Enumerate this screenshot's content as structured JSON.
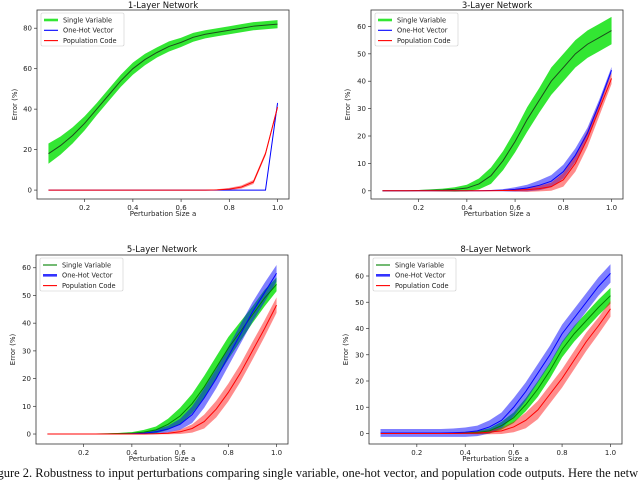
{
  "chart_data": [
    {
      "type": "line",
      "title": "1-Layer Network",
      "xlabel": "Perturbation Size a",
      "ylabel": "Error (%)",
      "xlim": [
        0.0025,
        1.0475
      ],
      "ylim": [
        -4.4,
        89
      ],
      "xticks": [
        0.2,
        0.4,
        0.6,
        0.8,
        1.0
      ],
      "yticks": [
        0,
        20,
        40,
        60,
        80
      ],
      "legend": "upper-left",
      "x": [
        0.05,
        0.1,
        0.15,
        0.2,
        0.25,
        0.3,
        0.35,
        0.4,
        0.45,
        0.5,
        0.55,
        0.6,
        0.65,
        0.7,
        0.75,
        0.8,
        0.85,
        0.9,
        0.95,
        1.0
      ],
      "series": [
        {
          "name": "Single Variable",
          "color": "#00e000",
          "line_color": "#1b4d1b",
          "values": [
            18,
            22,
            27,
            33,
            40,
            47,
            54,
            60,
            64.5,
            68,
            71,
            73,
            75.5,
            77,
            78,
            79,
            80,
            81,
            81.5,
            82
          ],
          "std": [
            5,
            4.5,
            4,
            3.5,
            3,
            3,
            3,
            3,
            2.8,
            2.5,
            2.5,
            2.3,
            2.2,
            2,
            2,
            2,
            2,
            2,
            2,
            2
          ]
        },
        {
          "name": "One-Hot Vector",
          "color": "#0000ff",
          "line_color": "#0000ff",
          "values": [
            0,
            0,
            0,
            0,
            0,
            0,
            0,
            0,
            0,
            0,
            0,
            0,
            0,
            0,
            0,
            0,
            0,
            0,
            0,
            43
          ],
          "std": [
            0,
            0,
            0,
            0,
            0,
            0,
            0,
            0,
            0,
            0,
            0,
            0,
            0,
            0,
            0,
            0,
            0,
            0,
            0,
            1
          ]
        },
        {
          "name": "Population Code",
          "color": "#ff0000",
          "line_color": "#ff0000",
          "values": [
            0,
            0,
            0,
            0,
            0,
            0,
            0,
            0,
            0,
            0,
            0,
            0,
            0,
            0,
            0.1,
            0.5,
            1.5,
            4,
            18,
            41
          ],
          "std": [
            0,
            0,
            0,
            0,
            0,
            0,
            0,
            0,
            0,
            0,
            0,
            0,
            0,
            0,
            0.3,
            0.6,
            0.8,
            1,
            1,
            1
          ]
        }
      ]
    },
    {
      "type": "line",
      "title": "3-Layer Network",
      "xlabel": "Perturbation Size a",
      "ylabel": "Error (%)",
      "xlim": [
        0.0025,
        1.0475
      ],
      "ylim": [
        -3,
        66
      ],
      "xticks": [
        0.2,
        0.4,
        0.6,
        0.8,
        1.0
      ],
      "yticks": [
        0,
        10,
        20,
        30,
        40,
        50,
        60
      ],
      "legend": "upper-left",
      "x": [
        0.05,
        0.1,
        0.15,
        0.2,
        0.25,
        0.3,
        0.35,
        0.4,
        0.45,
        0.5,
        0.55,
        0.6,
        0.65,
        0.7,
        0.75,
        0.8,
        0.85,
        0.9,
        0.95,
        1.0
      ],
      "series": [
        {
          "name": "Single Variable",
          "color": "#00e000",
          "line_color": "#1b4d1b",
          "values": [
            0,
            0,
            0,
            0.1,
            0.2,
            0.3,
            0.5,
            1,
            2.5,
            5.5,
            11,
            18,
            26,
            33,
            40,
            45,
            50,
            53.5,
            56,
            58.5
          ],
          "std": [
            0,
            0,
            0,
            0.2,
            0.3,
            0.5,
            0.8,
            1.2,
            2,
            3,
            3.5,
            4,
            4.5,
            4.5,
            5,
            5,
            5,
            5,
            5,
            5
          ]
        },
        {
          "name": "One-Hot Vector",
          "color": "#0000ff",
          "line_color": "#0000ff",
          "values": [
            0,
            0,
            0,
            0,
            0,
            0,
            0,
            0,
            0,
            0.1,
            0.2,
            0.5,
            1,
            2,
            3.5,
            7,
            13,
            21,
            32,
            44
          ],
          "std": [
            0,
            0,
            0,
            0,
            0,
            0,
            0,
            0,
            0,
            0.2,
            0.4,
            0.8,
            1.2,
            1.8,
            2.2,
            2.5,
            2.5,
            2,
            1.5,
            1.2
          ]
        },
        {
          "name": "Population Code",
          "color": "#ff0000",
          "line_color": "#ff0000",
          "values": [
            0,
            0,
            0,
            0,
            0,
            0,
            0,
            0,
            0,
            0,
            0.1,
            0.2,
            0.4,
            0.8,
            1.5,
            4,
            10,
            19,
            30,
            41
          ],
          "std": [
            0,
            0,
            0,
            0,
            0,
            0,
            0,
            0,
            0,
            0,
            0.2,
            0.4,
            0.8,
            1,
            1.5,
            2.5,
            3,
            3,
            2.5,
            2
          ]
        }
      ]
    },
    {
      "type": "line",
      "title": "5-Layer Network",
      "xlabel": "Perturbation Size a",
      "ylabel": "Error (%)",
      "xlim": [
        0.0025,
        1.0475
      ],
      "ylim": [
        -3.6,
        64.6
      ],
      "xticks": [
        0.2,
        0.4,
        0.6,
        0.8,
        1.0
      ],
      "yticks": [
        0,
        10,
        20,
        30,
        40,
        50,
        60
      ],
      "legend": "upper-left",
      "x": [
        0.05,
        0.1,
        0.15,
        0.2,
        0.25,
        0.3,
        0.35,
        0.4,
        0.45,
        0.5,
        0.55,
        0.6,
        0.65,
        0.7,
        0.75,
        0.8,
        0.85,
        0.9,
        0.95,
        1.0
      ],
      "series": [
        {
          "name": "Single Variable",
          "color": "#00e000",
          "line_color": "#008000",
          "values": [
            0,
            0,
            0,
            0,
            0,
            0.1,
            0.2,
            0.3,
            0.7,
            1.5,
            3.5,
            6.5,
            11,
            17,
            24,
            31,
            37,
            43,
            49,
            54
          ],
          "std": [
            0,
            0,
            0,
            0,
            0,
            0.1,
            0.2,
            0.4,
            0.8,
            1.2,
            2,
            3,
            3.5,
            4,
            4,
            4,
            3.5,
            3,
            3,
            2.5
          ]
        },
        {
          "name": "One-Hot Vector",
          "color": "#0000ff",
          "line_color": "#0000ff",
          "values": [
            0,
            0,
            0,
            0,
            0,
            0,
            0,
            0.1,
            0.3,
            0.8,
            1.8,
            3.5,
            7,
            13,
            20,
            28,
            36,
            44,
            51,
            58
          ],
          "std": [
            0,
            0,
            0,
            0,
            0,
            0,
            0,
            0.2,
            0.4,
            0.8,
            1.2,
            2,
            3,
            3.5,
            3.5,
            3.5,
            3.5,
            3.5,
            3.5,
            3
          ]
        },
        {
          "name": "Population Code",
          "color": "#ff0000",
          "line_color": "#ff0000",
          "values": [
            0,
            0,
            0,
            0,
            0,
            0,
            0,
            0,
            0,
            0.1,
            0.3,
            0.8,
            2,
            4.5,
            9,
            15,
            22,
            30,
            38,
            46.5
          ],
          "std": [
            0,
            0,
            0,
            0,
            0,
            0,
            0,
            0,
            0,
            0.2,
            0.4,
            0.8,
            1.5,
            2.5,
            3,
            3.2,
            3.2,
            3.2,
            3,
            2.8
          ]
        }
      ]
    },
    {
      "type": "line",
      "title": "8-Layer Network",
      "xlabel": "Perturbation Size a",
      "ylabel": "Error (%)",
      "xlim": [
        0.0025,
        1.0475
      ],
      "ylim": [
        -4,
        68
      ],
      "xticks": [
        0.2,
        0.4,
        0.6,
        0.8,
        1.0
      ],
      "yticks": [
        0,
        10,
        20,
        30,
        40,
        50,
        60
      ],
      "legend": "upper-left",
      "x": [
        0.05,
        0.1,
        0.15,
        0.2,
        0.25,
        0.3,
        0.35,
        0.4,
        0.45,
        0.5,
        0.55,
        0.6,
        0.65,
        0.7,
        0.75,
        0.8,
        0.85,
        0.9,
        0.95,
        1.0
      ],
      "series": [
        {
          "name": "Single Variable",
          "color": "#00e000",
          "line_color": "#008000",
          "values": [
            0,
            0,
            0,
            0,
            0,
            0,
            0.1,
            0.2,
            0.4,
            1,
            3,
            6,
            11,
            17,
            24,
            32,
            38,
            43,
            48,
            52.5
          ],
          "std": [
            0.2,
            0.2,
            0.2,
            0.2,
            0.2,
            0.2,
            0.3,
            0.4,
            0.6,
            1,
            1.5,
            2,
            2.5,
            3,
            3,
            3,
            3,
            3,
            3,
            3
          ]
        },
        {
          "name": "One-Hot Vector",
          "color": "#0000ff",
          "line_color": "#0000ff",
          "values": [
            0.2,
            0.2,
            0.2,
            0.2,
            0.2,
            0.2,
            0.3,
            0.5,
            1,
            2.5,
            5,
            10,
            16,
            23,
            30,
            38,
            44,
            50,
            56,
            61
          ],
          "std": [
            1.5,
            1.5,
            1.5,
            1.5,
            1.5,
            1.5,
            1.6,
            1.8,
            2,
            2.5,
            3,
            3.5,
            3.5,
            3.5,
            3.5,
            3.5,
            3.5,
            3.5,
            3.5,
            3.5
          ]
        },
        {
          "name": "Population Code",
          "color": "#ff0000",
          "line_color": "#ff0000",
          "values": [
            0,
            0,
            0,
            0,
            0,
            0,
            0,
            0.1,
            0.2,
            0.5,
            1,
            2.5,
            5,
            9,
            15,
            21,
            28,
            35,
            41,
            47.5
          ],
          "std": [
            0.2,
            0.2,
            0.2,
            0.2,
            0.2,
            0.2,
            0.2,
            0.3,
            0.5,
            0.8,
            1.2,
            2,
            3,
            3.5,
            3.5,
            3.5,
            3.5,
            3.5,
            3.2,
            3
          ]
        }
      ]
    }
  ],
  "caption": "igure 2. Robustness to input perturbations comparing single variable, one-hot vector, and population code outputs. Here the netw"
}
